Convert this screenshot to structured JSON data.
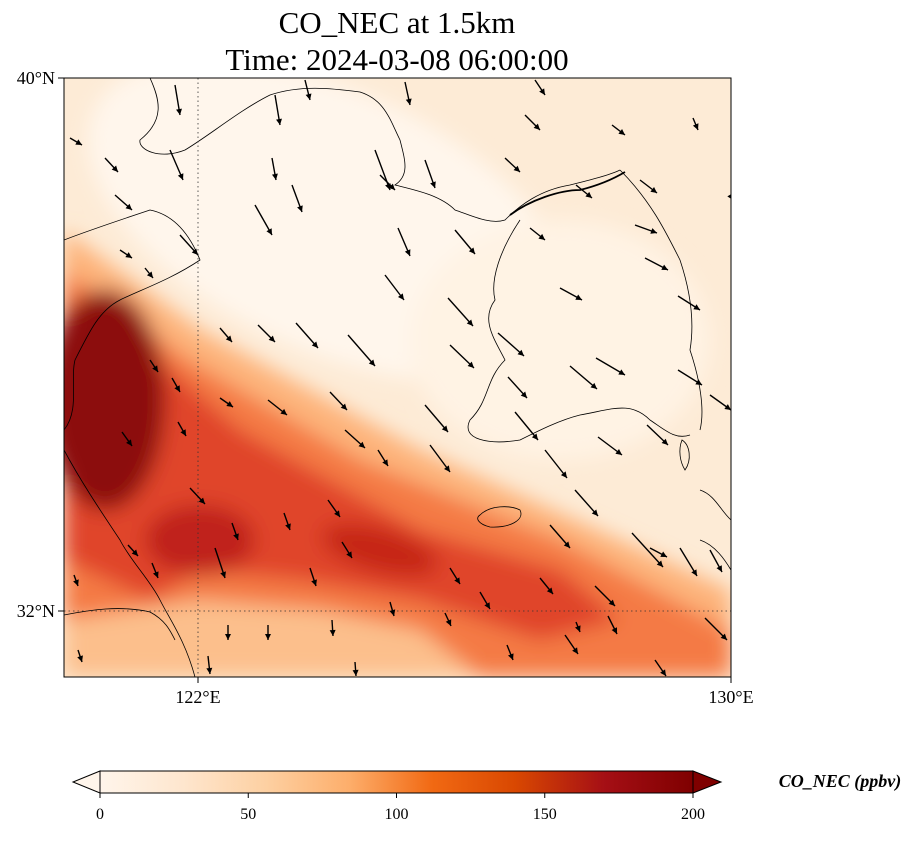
{
  "title": {
    "line1": "CO_NEC at 1.5km",
    "line2": "Time: 2024-03-08 06:00:00"
  },
  "map": {
    "lon_range": [
      120,
      130
    ],
    "lat_range": [
      31,
      40
    ],
    "gridlines": {
      "lon": [
        122
      ],
      "lat": [
        32
      ]
    },
    "lon_ticks": [
      {
        "value": 122,
        "label": "122°E"
      },
      {
        "value": 130,
        "label": "130°E"
      }
    ],
    "lat_ticks": [
      {
        "value": 40,
        "label": "40°N"
      },
      {
        "value": 32,
        "label": "32°N"
      }
    ]
  },
  "colorbar": {
    "label": "CO_NEC (ppbv)",
    "min": 0,
    "max": 200,
    "ticks": [
      0,
      50,
      100,
      150,
      200
    ],
    "colors": [
      "#fff5eb",
      "#fee6ce",
      "#fdd0a2",
      "#fdae6b",
      "#f16913",
      "#d94801",
      "#a50f15",
      "#7f0000"
    ]
  }
}
